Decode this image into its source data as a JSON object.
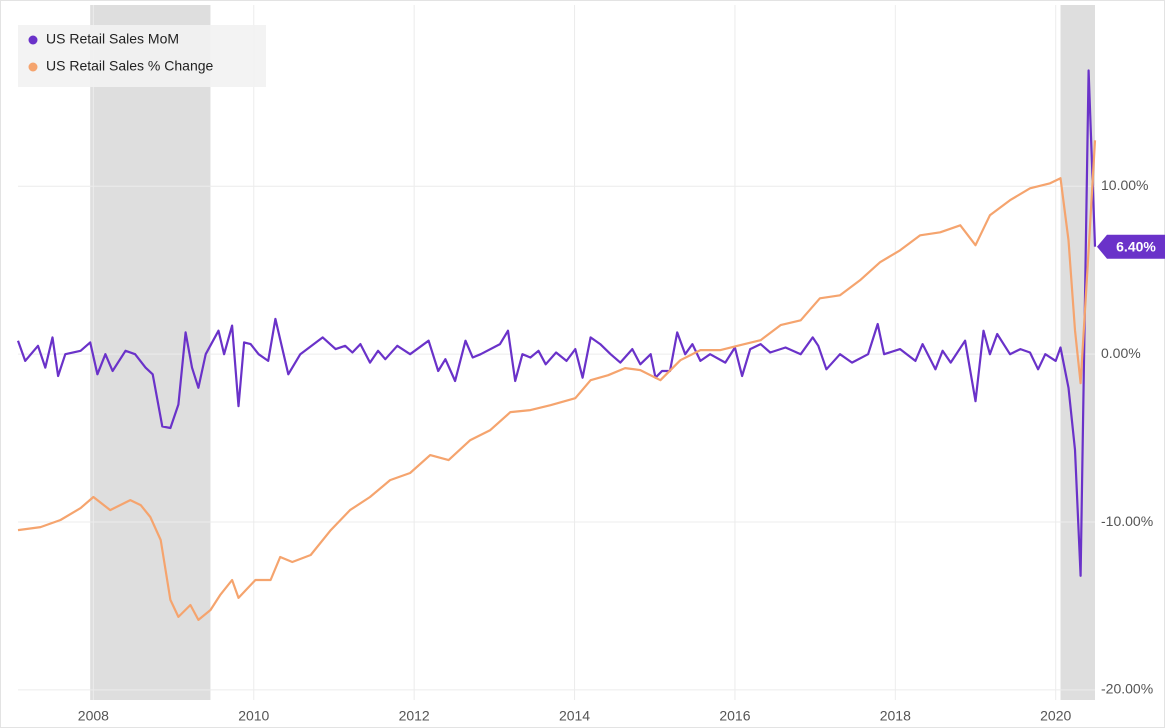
{
  "chart_data": {
    "type": "line",
    "xlim": [
      2007.06,
      2020.49
    ],
    "xticks": [
      2008,
      2010,
      2012,
      2014,
      2016,
      2018,
      2020
    ],
    "ylim": [
      -20.6,
      20.8
    ],
    "yticks": [
      {
        "value": -20,
        "label": "-20.00%"
      },
      {
        "value": -10,
        "label": "-10.00%"
      },
      {
        "value": 0,
        "label": "0.00%"
      },
      {
        "value": 10,
        "label": "10.00%"
      }
    ],
    "grid": true,
    "legend": "upper left",
    "y_axis_side": "right",
    "shaded_periods": [
      [
        2007.96,
        2009.46
      ],
      [
        2020.06,
        2020.49
      ]
    ],
    "series": [
      {
        "name": "US Retail Sales MoM",
        "color": "#6a32c9",
        "value_label": "6.40%",
        "x": [
          2007.06,
          2007.15,
          2007.31,
          2007.4,
          2007.49,
          2007.56,
          2007.65,
          2007.84,
          2007.96,
          2008.05,
          2008.15,
          2008.24,
          2008.4,
          2008.52,
          2008.65,
          2008.74,
          2008.86,
          2008.96,
          2009.06,
          2009.15,
          2009.23,
          2009.31,
          2009.4,
          2009.56,
          2009.63,
          2009.73,
          2009.81,
          2009.88,
          2009.96,
          2010.06,
          2010.18,
          2010.27,
          2010.43,
          2010.58,
          2010.86,
          2011.02,
          2011.14,
          2011.23,
          2011.33,
          2011.45,
          2011.55,
          2011.64,
          2011.79,
          2011.95,
          2012.18,
          2012.3,
          2012.39,
          2012.51,
          2012.64,
          2012.73,
          2012.83,
          2013.07,
          2013.17,
          2013.26,
          2013.35,
          2013.45,
          2013.55,
          2013.64,
          2013.77,
          2013.9,
          2014.01,
          2014.1,
          2014.2,
          2014.32,
          2014.45,
          2014.57,
          2014.72,
          2014.82,
          2014.95,
          2015.01,
          2015.09,
          2015.19,
          2015.28,
          2015.38,
          2015.47,
          2015.57,
          2015.69,
          2015.88,
          2016.0,
          2016.09,
          2016.19,
          2016.32,
          2016.44,
          2016.63,
          2016.82,
          2016.97,
          2017.04,
          2017.14,
          2017.31,
          2017.46,
          2017.66,
          2017.78,
          2017.86,
          2018.06,
          2018.25,
          2018.34,
          2018.5,
          2018.59,
          2018.69,
          2018.87,
          2019.0,
          2019.1,
          2019.18,
          2019.27,
          2019.43,
          2019.56,
          2019.68,
          2019.78,
          2019.87,
          2020.0,
          2020.06,
          2020.16,
          2020.24,
          2020.31,
          2020.41,
          2020.49
        ],
        "values": [
          0.8,
          -0.4,
          0.5,
          -0.8,
          1.0,
          -1.3,
          0.0,
          0.2,
          0.7,
          -1.2,
          0.0,
          -1.0,
          0.2,
          0.0,
          -0.8,
          -1.2,
          -4.3,
          -4.4,
          -3.0,
          1.3,
          -0.8,
          -2.0,
          0.0,
          1.4,
          0.0,
          1.7,
          -3.1,
          0.7,
          0.6,
          0.0,
          -0.4,
          2.1,
          -1.2,
          0.0,
          1.0,
          0.3,
          0.5,
          0.1,
          0.6,
          -0.5,
          0.2,
          -0.3,
          0.5,
          0.0,
          0.8,
          -1.0,
          -0.3,
          -1.6,
          0.8,
          -0.2,
          0.0,
          0.6,
          1.4,
          -1.6,
          0.0,
          -0.2,
          0.2,
          -0.6,
          0.1,
          -0.4,
          0.3,
          -1.4,
          1.0,
          0.6,
          0.0,
          -0.5,
          0.3,
          -0.6,
          0.0,
          -1.4,
          -1.0,
          -1.0,
          1.3,
          0.0,
          0.6,
          -0.4,
          0.0,
          -0.5,
          0.4,
          -1.3,
          0.3,
          0.6,
          0.1,
          0.4,
          0.0,
          1.0,
          0.5,
          -0.9,
          0.0,
          -0.5,
          0.0,
          1.8,
          0.0,
          0.3,
          -0.4,
          0.6,
          -0.9,
          0.2,
          -0.5,
          0.8,
          -2.8,
          1.4,
          0.0,
          1.2,
          0.0,
          0.3,
          0.1,
          -0.9,
          0.0,
          -0.4,
          0.4,
          -2.0,
          -5.7,
          -13.2,
          16.9,
          6.4
        ]
      },
      {
        "name": "US Retail Sales % Change",
        "color": "#f5a46e",
        "x": [
          2007.06,
          2007.34,
          2007.59,
          2007.84,
          2008.0,
          2008.21,
          2008.46,
          2008.59,
          2008.71,
          2008.84,
          2008.96,
          2009.06,
          2009.21,
          2009.31,
          2009.46,
          2009.58,
          2009.73,
          2009.81,
          2010.02,
          2010.21,
          2010.33,
          2010.48,
          2010.71,
          2010.96,
          2011.2,
          2011.45,
          2011.7,
          2011.95,
          2012.2,
          2012.43,
          2012.7,
          2012.95,
          2013.2,
          2013.45,
          2013.7,
          2014.01,
          2014.2,
          2014.42,
          2014.63,
          2014.82,
          2015.07,
          2015.32,
          2015.57,
          2015.82,
          2016.07,
          2016.32,
          2016.57,
          2016.82,
          2017.06,
          2017.31,
          2017.56,
          2017.81,
          2018.06,
          2018.31,
          2018.56,
          2018.81,
          2019.0,
          2019.18,
          2019.43,
          2019.68,
          2019.93,
          2020.06,
          2020.16,
          2020.24,
          2020.31,
          2020.41,
          2020.49
        ],
        "values": [
          -10.48,
          -10.3,
          -9.88,
          -9.17,
          -8.51,
          -9.29,
          -8.69,
          -8.99,
          -9.7,
          -11.07,
          -14.64,
          -15.65,
          -14.94,
          -15.83,
          -15.24,
          -14.35,
          -13.45,
          -14.52,
          -13.45,
          -13.45,
          -12.08,
          -12.38,
          -11.96,
          -10.48,
          -9.29,
          -8.51,
          -7.5,
          -7.08,
          -6.01,
          -6.31,
          -5.12,
          -4.52,
          -3.45,
          -3.33,
          -3.04,
          -2.62,
          -1.55,
          -1.25,
          -0.83,
          -0.95,
          -1.55,
          -0.36,
          0.24,
          0.24,
          0.54,
          0.83,
          1.73,
          2.02,
          3.33,
          3.51,
          4.4,
          5.48,
          6.19,
          7.08,
          7.26,
          7.68,
          6.49,
          8.27,
          9.17,
          9.88,
          10.18,
          10.48,
          6.79,
          1.43,
          -1.73,
          6.19,
          12.74
        ]
      }
    ]
  }
}
